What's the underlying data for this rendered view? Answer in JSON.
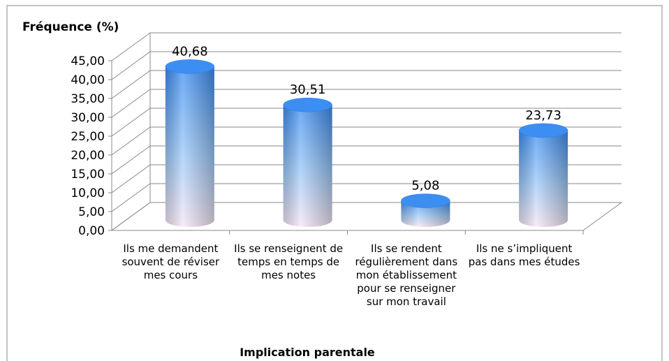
{
  "chart_data": {
    "type": "bar3d",
    "title": "Fréquence (%)",
    "x_label": "Implication parentale",
    "categories": [
      "Ils me demandent souvent de réviser mes cours",
      "Ils se renseignent de temps en temps de mes notes",
      "Ils se rendent régulièrement dans mon établissement pour se renseigner sur mon travail",
      "Ils ne s’impliquent pas dans mes études"
    ],
    "values": [
      40.68,
      30.51,
      5.08,
      23.73
    ],
    "value_labels": [
      "40,68",
      "30,51",
      "5,08",
      "23,73"
    ],
    "color": "#3d8ef2",
    "ylim": [
      0,
      45
    ],
    "yticks": [
      {
        "value": 0,
        "label": "0,00"
      },
      {
        "value": 5,
        "label": "5,00"
      },
      {
        "value": 10,
        "label": "10,00"
      },
      {
        "value": 15,
        "label": "15,00"
      },
      {
        "value": 20,
        "label": "20,00"
      },
      {
        "value": 25,
        "label": "25,00"
      },
      {
        "value": 30,
        "label": "30,00"
      },
      {
        "value": 35,
        "label": "35,00"
      },
      {
        "value": 40,
        "label": "40,00"
      },
      {
        "value": 45,
        "label": "45,00"
      }
    ],
    "grid": true
  }
}
